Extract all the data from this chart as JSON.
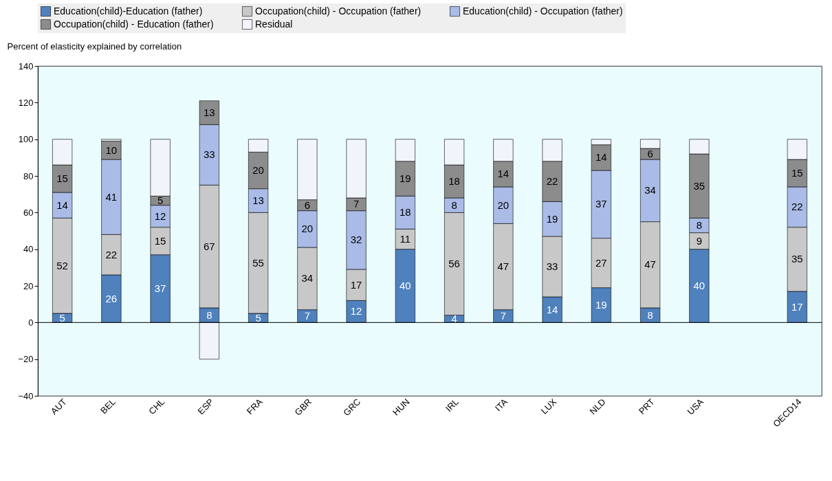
{
  "chart_data": {
    "type": "bar",
    "stacked": true,
    "ylabel": "Percent of elasticity explained by correlation",
    "categories": [
      "AUT",
      "BEL",
      "CHL",
      "ESP",
      "FRA",
      "GBR",
      "GRC",
      "HUN",
      "IRL",
      "ITA",
      "LUX",
      "NLD",
      "PRT",
      "USA",
      null,
      "OECD14"
    ],
    "series": [
      {
        "name": "Education(child)-Education (father)",
        "color": "#4f81bd",
        "values": [
          5,
          26,
          37,
          8,
          5,
          7,
          12,
          40,
          4,
          7,
          14,
          19,
          8,
          40,
          null,
          17
        ]
      },
      {
        "name": "Occupation(child) - Occupation (father)",
        "color": "#c8c8c8",
        "values": [
          52,
          22,
          15,
          67,
          55,
          34,
          17,
          11,
          56,
          47,
          33,
          27,
          47,
          9,
          null,
          35
        ]
      },
      {
        "name": "Education(child) - Occupation (father)",
        "color": "#a9bbe6",
        "values": [
          14,
          41,
          12,
          33,
          13,
          20,
          32,
          18,
          8,
          20,
          19,
          37,
          34,
          8,
          null,
          22
        ]
      },
      {
        "name": "Occupation(child) - Education (father)",
        "color": "#8c8c8c",
        "values": [
          15,
          10,
          5,
          13,
          20,
          6,
          7,
          19,
          18,
          14,
          22,
          14,
          6,
          35,
          null,
          15
        ]
      },
      {
        "name": "Residual",
        "color": "#f2f4fb",
        "values": [
          14,
          1,
          31,
          -20,
          7,
          33,
          32,
          12,
          14,
          12,
          12,
          3,
          5,
          8,
          null,
          11
        ],
        "value_labels": [
          null,
          null,
          null,
          null,
          null,
          null,
          null,
          null,
          null,
          null,
          null,
          null,
          null,
          null,
          null,
          null
        ]
      }
    ],
    "data_labels": true,
    "ylim": [
      -40,
      140
    ],
    "yticks": [
      -40,
      -20,
      0,
      20,
      40,
      60,
      80,
      100,
      120,
      140
    ],
    "ref_lines": [
      {
        "axis": "y",
        "value": 0,
        "color": "#000000"
      }
    ],
    "grid": false,
    "legend": "top"
  }
}
